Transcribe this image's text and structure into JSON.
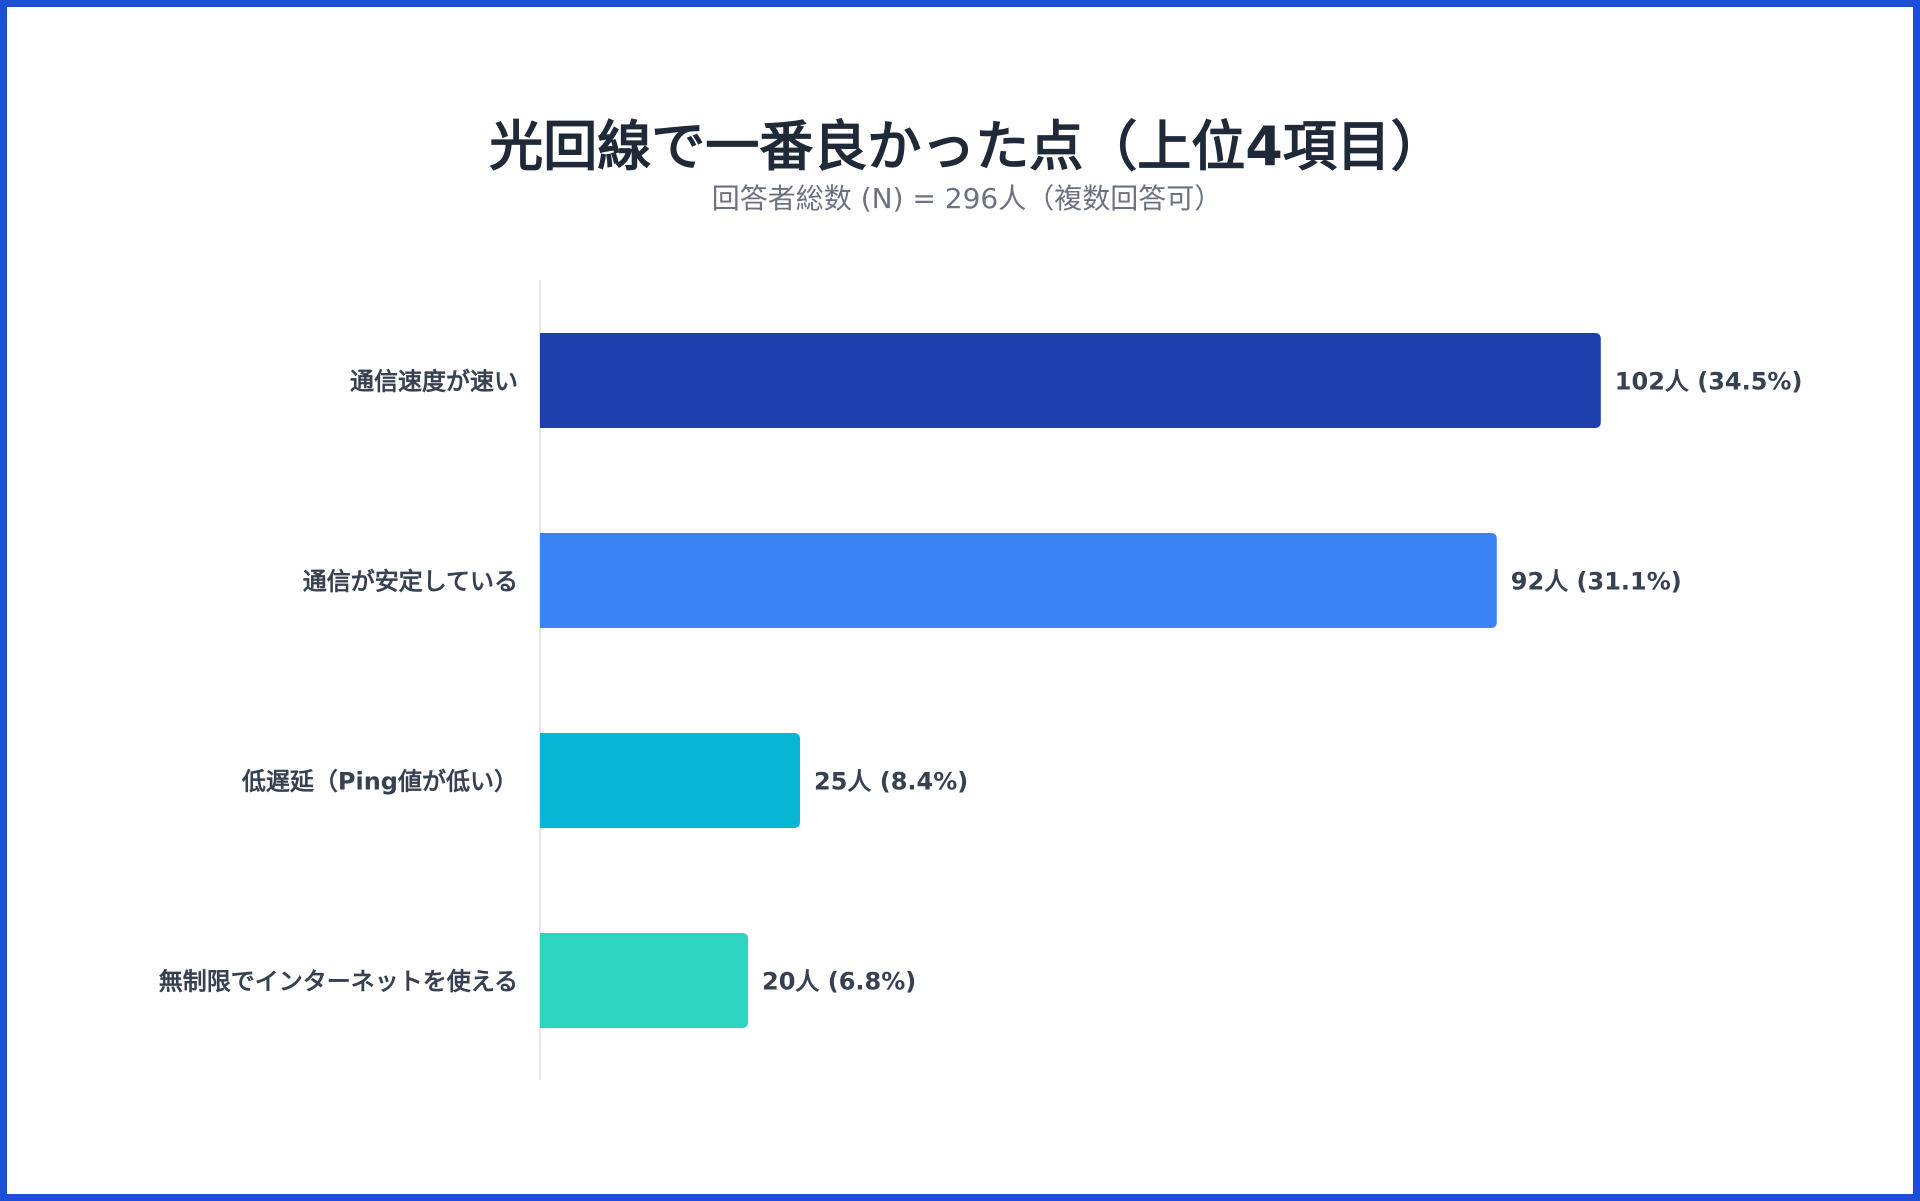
{
  "chart_data": {
    "type": "bar",
    "orientation": "horizontal",
    "title": "光回線で一番良かった点（上位4項目）",
    "subtitle": "回答者総数 (N) = 296人（複数回答可）",
    "categories": [
      "通信速度が速い",
      "通信が安定している",
      "低遅延（Ping値が低い）",
      "無制限でインターネットを使える"
    ],
    "values": [
      102,
      92,
      25,
      20
    ],
    "data_labels": [
      "102人 (34.5%)",
      "92人 (31.1%)",
      "25人 (8.4%)",
      "20人 (6.8%)"
    ],
    "colors": [
      "#1e40af",
      "#3b82f6",
      "#06b6d4",
      "#2dd4bf"
    ],
    "xlim": [
      0,
      125
    ],
    "grid": false,
    "legend": "none"
  },
  "colors": {
    "border": "#1d4ed8",
    "title": "#1f2937",
    "label": "#374151"
  }
}
